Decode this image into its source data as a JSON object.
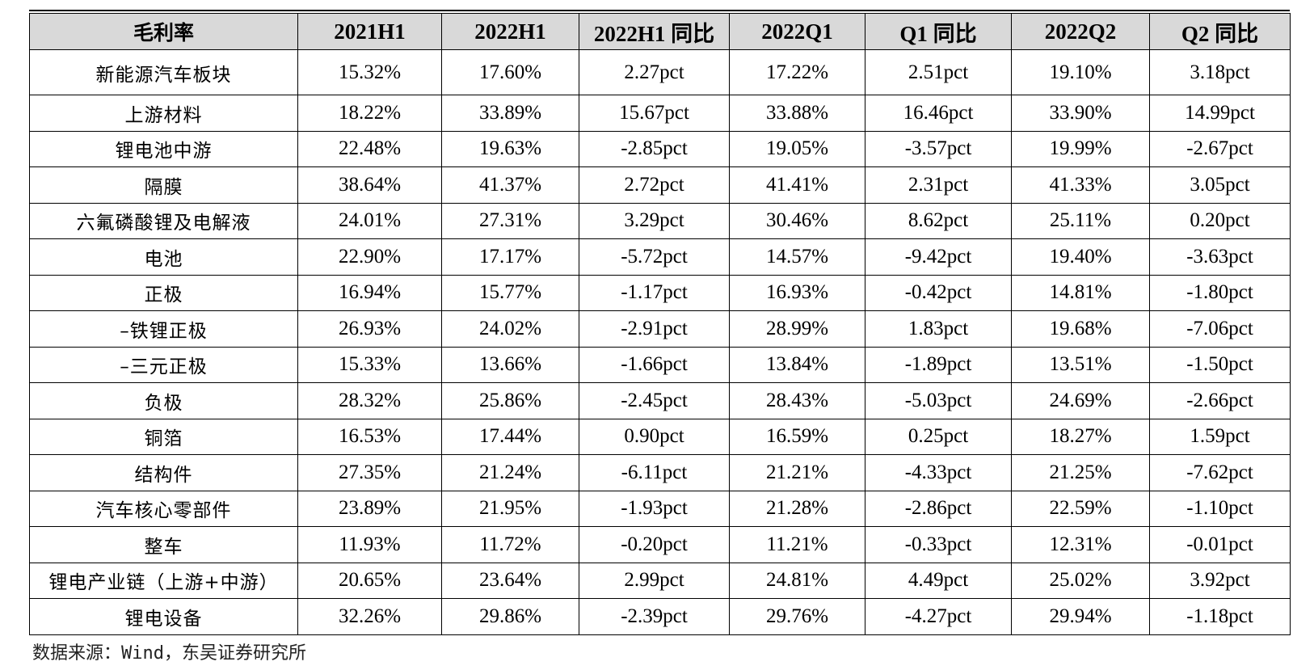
{
  "table": {
    "headers": [
      "毛利率",
      "2021H1",
      "2022H1",
      "2022H1 同比",
      "2022Q1",
      "Q1 同比",
      "2022Q2",
      "Q2 同比"
    ],
    "rows": [
      [
        "新能源汽车板块",
        "15.32%",
        "17.60%",
        "2.27pct",
        "17.22%",
        "2.51pct",
        "19.10%",
        "3.18pct"
      ],
      [
        "上游材料",
        "18.22%",
        "33.89%",
        "15.67pct",
        "33.88%",
        "16.46pct",
        "33.90%",
        "14.99pct"
      ],
      [
        "锂电池中游",
        "22.48%",
        "19.63%",
        "-2.85pct",
        "19.05%",
        "-3.57pct",
        "19.99%",
        "-2.67pct"
      ],
      [
        "隔膜",
        "38.64%",
        "41.37%",
        "2.72pct",
        "41.41%",
        "2.31pct",
        "41.33%",
        "3.05pct"
      ],
      [
        "六氟磷酸锂及电解液",
        "24.01%",
        "27.31%",
        "3.29pct",
        "30.46%",
        "8.62pct",
        "25.11%",
        "0.20pct"
      ],
      [
        "电池",
        "22.90%",
        "17.17%",
        "-5.72pct",
        "14.57%",
        "-9.42pct",
        "19.40%",
        "-3.63pct"
      ],
      [
        "正极",
        "16.94%",
        "15.77%",
        "-1.17pct",
        "16.93%",
        "-0.42pct",
        "14.81%",
        "-1.80pct"
      ],
      [
        "–铁锂正极",
        "26.93%",
        "24.02%",
        "-2.91pct",
        "28.99%",
        "1.83pct",
        "19.68%",
        "-7.06pct"
      ],
      [
        "–三元正极",
        "15.33%",
        "13.66%",
        "-1.66pct",
        "13.84%",
        "-1.89pct",
        "13.51%",
        "-1.50pct"
      ],
      [
        "负极",
        "28.32%",
        "25.86%",
        "-2.45pct",
        "28.43%",
        "-5.03pct",
        "24.69%",
        "-2.66pct"
      ],
      [
        "铜箔",
        "16.53%",
        "17.44%",
        "0.90pct",
        "16.59%",
        "0.25pct",
        "18.27%",
        "1.59pct"
      ],
      [
        "结构件",
        "27.35%",
        "21.24%",
        "-6.11pct",
        "21.21%",
        "-4.33pct",
        "21.25%",
        "-7.62pct"
      ],
      [
        "汽车核心零部件",
        "23.89%",
        "21.95%",
        "-1.93pct",
        "21.28%",
        "-2.86pct",
        "22.59%",
        "-1.10pct"
      ],
      [
        "整车",
        "11.93%",
        "11.72%",
        "-0.20pct",
        "11.21%",
        "-0.33pct",
        "12.31%",
        "-0.01pct"
      ],
      [
        "锂电产业链（上游+中游）",
        "20.65%",
        "23.64%",
        "2.99pct",
        "24.81%",
        "4.49pct",
        "25.02%",
        "3.92pct"
      ],
      [
        "锂电设备",
        "32.26%",
        "29.86%",
        "-2.39pct",
        "29.76%",
        "-4.27pct",
        "29.94%",
        "-1.18pct"
      ]
    ]
  },
  "source": "数据来源：Wind，东吴证券研究所"
}
